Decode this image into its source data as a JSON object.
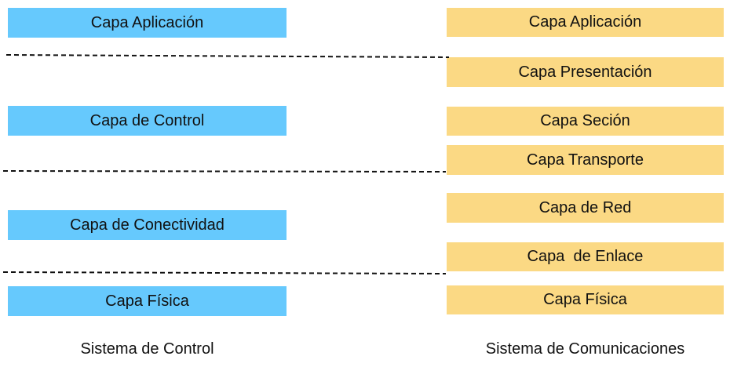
{
  "control_system": {
    "title": "Sistema de Control",
    "layers": [
      "Capa Aplicación",
      "Capa de Control",
      "Capa de Conectividad",
      "Capa Física"
    ]
  },
  "communication_system": {
    "title": "Sistema de Comunicaciones",
    "layers": [
      "Capa Aplicación",
      "Capa Presentación",
      "Capa Seción",
      "Capa Transporte",
      "Capa de Red",
      "Capa  de Enlace",
      "Capa Física"
    ]
  },
  "colors": {
    "control_fill": "#66c9fd",
    "communication_fill": "#fbd984",
    "divider": "#111111"
  }
}
